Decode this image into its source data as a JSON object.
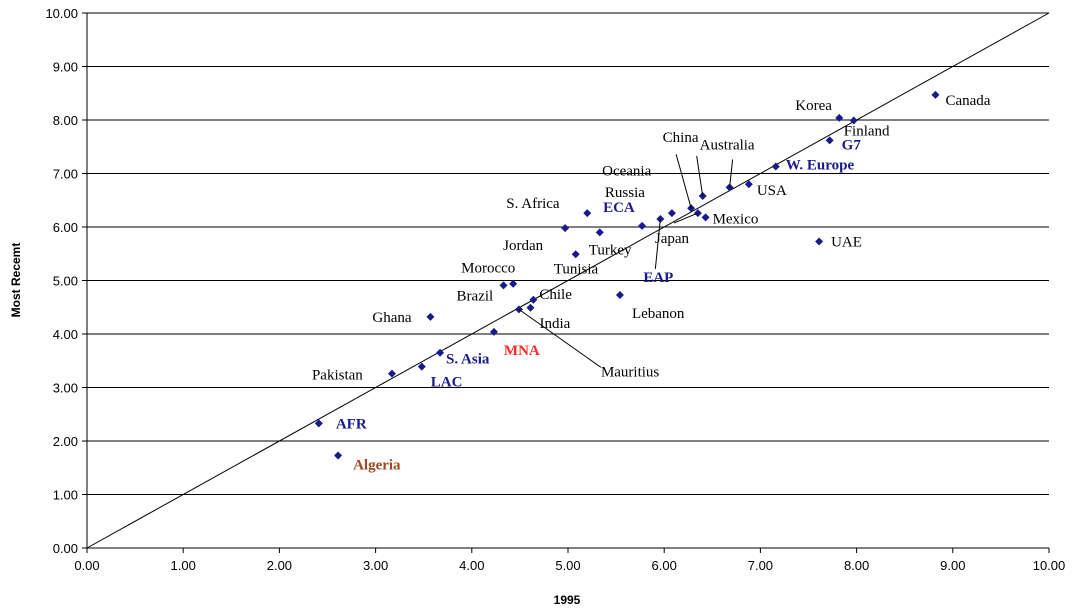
{
  "chart_data": {
    "type": "scatter",
    "xlabel": "1995",
    "ylabel": "Most Recemt",
    "xlim": [
      0,
      10
    ],
    "ylim": [
      0,
      10
    ],
    "x_ticks": [
      "0.00",
      "1.00",
      "2.00",
      "3.00",
      "4.00",
      "5.00",
      "6.00",
      "7.00",
      "8.00",
      "9.00",
      "10.00"
    ],
    "y_ticks": [
      "0.00",
      "1.00",
      "2.00",
      "3.00",
      "4.00",
      "5.00",
      "6.00",
      "7.00",
      "8.00",
      "9.00",
      "10.00"
    ],
    "grid": "horizontal",
    "reference_line": "y = x",
    "marker_color": "#1a1a8c",
    "points": [
      {
        "label": "Canada",
        "x": 8.82,
        "y": 8.47,
        "style": "country"
      },
      {
        "label": "Korea",
        "x": 7.82,
        "y": 8.04,
        "style": "country"
      },
      {
        "label": "Finland",
        "x": 7.97,
        "y": 7.99,
        "style": "country"
      },
      {
        "label": "G7",
        "x": 7.72,
        "y": 7.62,
        "style": "group"
      },
      {
        "label": "W. Europe",
        "x": 7.16,
        "y": 7.13,
        "style": "group"
      },
      {
        "label": "USA",
        "x": 6.88,
        "y": 6.8,
        "style": "country"
      },
      {
        "label": "Australia",
        "x": 6.68,
        "y": 6.74,
        "style": "country"
      },
      {
        "label": "China",
        "x": 6.4,
        "y": 6.58,
        "style": "country"
      },
      {
        "label": "Oceania",
        "x": 6.28,
        "y": 6.35,
        "style": "country"
      },
      {
        "label": "Japan",
        "x": 6.35,
        "y": 6.26,
        "style": "country"
      },
      {
        "label": "Mexico",
        "x": 6.43,
        "y": 6.18,
        "style": "country"
      },
      {
        "label": "EAP",
        "x": 5.96,
        "y": 6.15,
        "style": "group"
      },
      {
        "label": "Russia",
        "x": 6.08,
        "y": 6.26,
        "style": "country"
      },
      {
        "label": "S. Africa",
        "x": 5.2,
        "y": 6.26,
        "style": "country"
      },
      {
        "label": "ECA",
        "x": 5.77,
        "y": 6.02,
        "style": "group"
      },
      {
        "label": "Jordan",
        "x": 4.97,
        "y": 5.98,
        "style": "country"
      },
      {
        "label": "Turkey",
        "x": 5.33,
        "y": 5.9,
        "style": "country"
      },
      {
        "label": "UAE",
        "x": 7.61,
        "y": 5.73,
        "style": "country"
      },
      {
        "label": "Tunisia",
        "x": 5.08,
        "y": 5.49,
        "style": "country"
      },
      {
        "label": "Morocco",
        "x": 4.43,
        "y": 4.94,
        "style": "country"
      },
      {
        "label": "Brazil",
        "x": 4.33,
        "y": 4.91,
        "style": "country"
      },
      {
        "label": "Lebanon",
        "x": 5.54,
        "y": 4.73,
        "style": "country"
      },
      {
        "label": "Chile",
        "x": 4.64,
        "y": 4.64,
        "style": "country"
      },
      {
        "label": "India",
        "x": 4.61,
        "y": 4.49,
        "style": "country"
      },
      {
        "label": "Mauritius",
        "x": 4.49,
        "y": 4.46,
        "style": "country"
      },
      {
        "label": "Ghana",
        "x": 3.57,
        "y": 4.32,
        "style": "country"
      },
      {
        "label": "MNA",
        "x": 4.23,
        "y": 4.04,
        "style": "mna"
      },
      {
        "label": "S. Asia",
        "x": 3.67,
        "y": 3.65,
        "style": "group"
      },
      {
        "label": "LAC",
        "x": 3.48,
        "y": 3.39,
        "style": "group"
      },
      {
        "label": "Pakistan",
        "x": 3.17,
        "y": 3.26,
        "style": "country"
      },
      {
        "label": "AFR",
        "x": 2.41,
        "y": 2.33,
        "style": "group"
      },
      {
        "label": "Algeria",
        "x": 2.61,
        "y": 1.73,
        "style": "algeria"
      }
    ]
  }
}
